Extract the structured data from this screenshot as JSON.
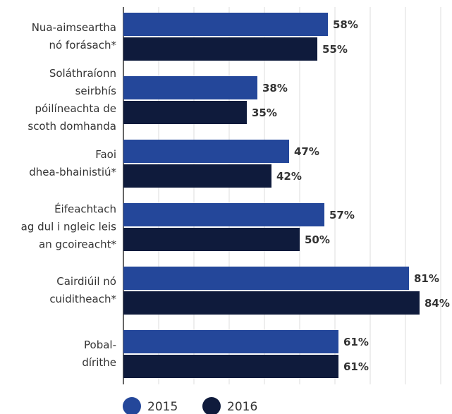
{
  "chart_data": {
    "type": "bar",
    "orientation": "horizontal",
    "categories": [
      "Nua-aimseartha\nnó forásach*",
      "Soláthraíonn\nseirbhís\npóilíneachta de\nscoth domhanda",
      "Faoi\ndhea-bhainistiú*",
      "Éifeachtach\nag dul i ngleic leis\nan gcoireacht*",
      "Cairdiúil nó\ncuiditheach*",
      "Pobal-\ndírithe"
    ],
    "series": [
      {
        "name": "2015",
        "color": "#24479a",
        "values": [
          58,
          38,
          47,
          57,
          81,
          61
        ],
        "value_labels": [
          "58%",
          "38%",
          "47%",
          "57%",
          "81%",
          "61%"
        ]
      },
      {
        "name": "2016",
        "color": "#0f1b3c",
        "values": [
          55,
          35,
          42,
          50,
          84,
          61
        ],
        "value_labels": [
          "55%",
          "35%",
          "42%",
          "50%",
          "84%",
          "61%"
        ]
      }
    ],
    "xlim": [
      0,
      90
    ],
    "xticks": [
      0,
      10,
      20,
      30,
      40,
      50,
      60,
      70,
      80,
      90
    ],
    "grid": true
  }
}
